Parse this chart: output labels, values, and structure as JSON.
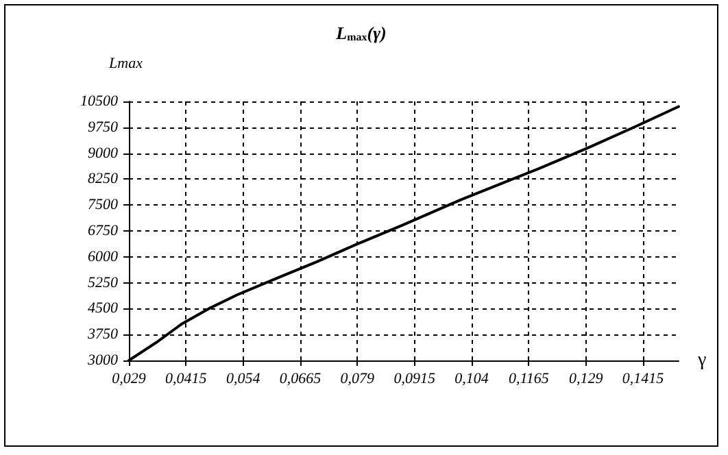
{
  "chart_data": {
    "type": "line",
    "title": "L$_{max}$(γ)",
    "xlabel": "γ",
    "ylabel": "Lmax",
    "x": [
      0.029,
      0.035,
      0.0405,
      0.0465,
      0.0527,
      0.0617,
      0.07,
      0.0786,
      0.0886,
      0.1016,
      0.1186,
      0.1295,
      0.14,
      0.1493
    ],
    "series": [
      {
        "color": "#000000",
        "values": [
          3000,
          3520,
          4050,
          4500,
          4900,
          5400,
          5850,
          6350,
          6900,
          7650,
          8550,
          9160,
          9780,
          10350
        ]
      }
    ],
    "xlim": [
      0.029,
      0.1493
    ],
    "xticks": [
      {
        "value": 0.029,
        "label": "0,029"
      },
      {
        "value": 0.0415,
        "label": "0,0415"
      },
      {
        "value": 0.054,
        "label": "0,054"
      },
      {
        "value": 0.0665,
        "label": "0,0665"
      },
      {
        "value": 0.079,
        "label": "0,079"
      },
      {
        "value": 0.0915,
        "label": "0,0915"
      },
      {
        "value": 0.104,
        "label": "0,104"
      },
      {
        "value": 0.1165,
        "label": "0,1165"
      },
      {
        "value": 0.129,
        "label": "0,129"
      },
      {
        "value": 0.1415,
        "label": "0,1415"
      }
    ],
    "ylim": [
      3000,
      10500
    ],
    "yticks": [
      3000,
      3750,
      4500,
      5250,
      6000,
      6750,
      7500,
      8250,
      9000,
      9750,
      10500
    ],
    "grid": true,
    "marker": "none",
    "line_style": "solid"
  }
}
